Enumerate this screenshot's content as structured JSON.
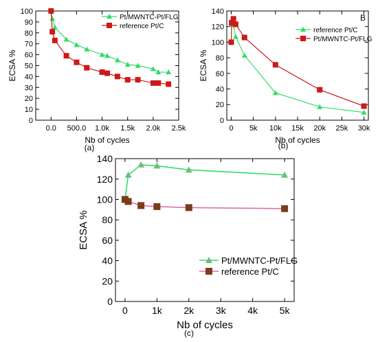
{
  "colors": {
    "green": "#33dd66",
    "red": "#cc1a1a",
    "marker_green": "#6cc07a",
    "marker_brown": "#7a3c1c",
    "pink_line": "#dd6fb0"
  },
  "chart_data": [
    {
      "type": "line",
      "caption": "(a)",
      "corner_label": "",
      "xlabel": "Nb of cycles",
      "ylabel": "ECSA %",
      "xlim": [
        -300,
        2500
      ],
      "ylim": [
        0,
        100
      ],
      "xticks": [
        0,
        500,
        1000,
        1500,
        2000,
        2500
      ],
      "xtick_labels": [
        "0.0",
        "500.0",
        "1.0k",
        "1.5k",
        "2.0k",
        "2.5k"
      ],
      "yticks": [
        0,
        10,
        20,
        30,
        40,
        50,
        60,
        70,
        80,
        90,
        100
      ],
      "ytick_labels": [
        "0",
        "10",
        "20",
        "30",
        "40",
        "50",
        "60",
        "70",
        "80",
        "90",
        "100"
      ],
      "legend_position": "top-right",
      "grid": false,
      "series": [
        {
          "name": "Pt/MWNTC-Pt/FLG",
          "color": "green",
          "marker": "triangle",
          "x": [
            0,
            25,
            75,
            300,
            500,
            700,
            1000,
            1100,
            1300,
            1500,
            1700,
            2000,
            2100,
            2300
          ],
          "y": [
            100,
            93,
            85,
            74,
            69,
            65,
            60,
            59,
            55,
            51,
            50,
            47,
            44,
            44
          ]
        },
        {
          "name": "reference Pt/C",
          "color": "red",
          "marker": "square",
          "x": [
            0,
            25,
            75,
            300,
            500,
            700,
            1000,
            1100,
            1300,
            1500,
            1700,
            2000,
            2100,
            2300
          ],
          "y": [
            100,
            81,
            73,
            59,
            53,
            48,
            44,
            43,
            40,
            37,
            37,
            34,
            34,
            33
          ]
        }
      ]
    },
    {
      "type": "line",
      "caption": "(b)",
      "corner_label": "B",
      "xlabel": "Nb of cycles",
      "ylabel": "ECSA %",
      "xlim": [
        -1000,
        31000
      ],
      "ylim": [
        0,
        140
      ],
      "xticks": [
        0,
        5000,
        10000,
        15000,
        20000,
        25000,
        30000
      ],
      "xtick_labels": [
        "0",
        "5k",
        "10k",
        "15k",
        "20k",
        "25k",
        "30k"
      ],
      "yticks": [
        0,
        20,
        40,
        60,
        80,
        100,
        120,
        140
      ],
      "ytick_labels": [
        "0",
        "20",
        "40",
        "60",
        "80",
        "100",
        "120",
        "140"
      ],
      "legend_position": "top-right",
      "grid": false,
      "series": [
        {
          "name": "reference Pt/C",
          "color": "green",
          "marker": "triangle",
          "x": [
            0,
            100,
            500,
            1000,
            3000,
            10000,
            20000,
            30000
          ],
          "y": [
            125,
            123,
            122,
            107,
            83,
            35,
            17,
            10
          ]
        },
        {
          "name": "Pt/MWNTC-Pt/FLG",
          "color": "red",
          "marker": "square",
          "x": [
            0,
            100,
            500,
            1000,
            3000,
            10000,
            20000,
            30000
          ],
          "y": [
            100,
            125,
            130,
            123,
            106,
            71,
            39,
            18
          ]
        }
      ]
    },
    {
      "type": "line",
      "caption": "(c)",
      "corner_label": "",
      "xlabel": "Nb of cycles",
      "ylabel": "ECSA %",
      "xlim": [
        -300,
        5300
      ],
      "ylim": [
        0,
        140
      ],
      "xticks": [
        0,
        1000,
        2000,
        3000,
        4000,
        5000
      ],
      "xtick_labels": [
        "0",
        "1k",
        "2k",
        "3k",
        "4k",
        "5k"
      ],
      "yticks": [
        0,
        20,
        40,
        60,
        80,
        100,
        120,
        140
      ],
      "ytick_labels": [
        "0",
        "20",
        "40",
        "60",
        "80",
        "100",
        "120",
        "140"
      ],
      "legend_position": "bottom-right",
      "grid": false,
      "series": [
        {
          "name": "Pt/MWNTC-Pt/FLG",
          "color": "marker_green",
          "line_color": "green",
          "marker": "triangle",
          "x": [
            0,
            100,
            500,
            1000,
            2000,
            5000
          ],
          "y": [
            100,
            124,
            134,
            133,
            129,
            124
          ]
        },
        {
          "name": "reference Pt/C",
          "color": "marker_brown",
          "line_color": "pink_line",
          "marker": "square",
          "x": [
            0,
            100,
            500,
            1000,
            2000,
            5000
          ],
          "y": [
            100,
            98,
            94,
            93,
            92,
            91
          ]
        }
      ]
    }
  ]
}
